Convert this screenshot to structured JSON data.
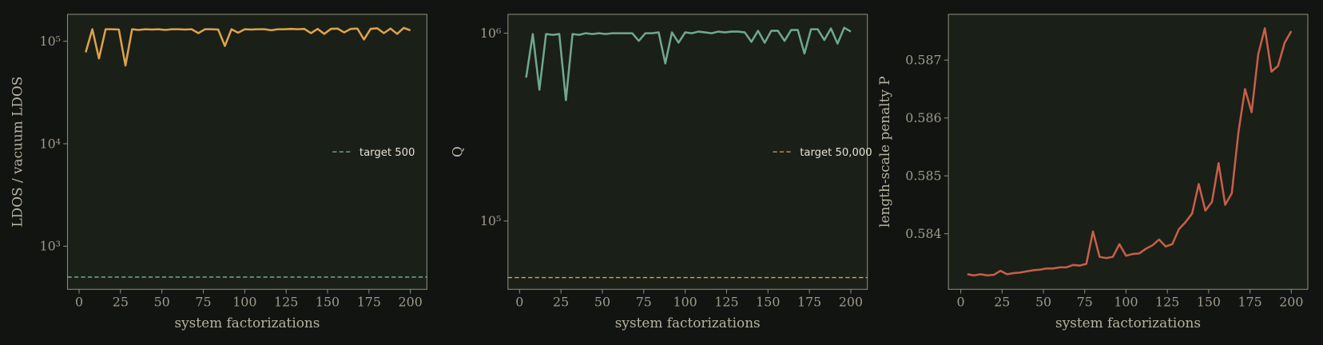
{
  "chart_data": [
    {
      "type": "line",
      "xlabel": "system factorizations",
      "ylabel": "LDOS / vacuum LDOS",
      "yscale": "log",
      "x": [
        4,
        8,
        12,
        16,
        20,
        24,
        28,
        32,
        36,
        40,
        44,
        48,
        52,
        56,
        60,
        64,
        68,
        72,
        76,
        80,
        84,
        88,
        92,
        96,
        100,
        104,
        108,
        112,
        116,
        120,
        124,
        128,
        132,
        136,
        140,
        144,
        148,
        152,
        156,
        160,
        164,
        168,
        172,
        176,
        180,
        184,
        188,
        192,
        196,
        200
      ],
      "values": [
        78000,
        131000,
        68000,
        131000,
        131000,
        130000,
        58000,
        131000,
        129000,
        131000,
        130000,
        131000,
        129000,
        131000,
        131000,
        130000,
        131000,
        120000,
        131000,
        131000,
        130000,
        90000,
        131000,
        121000,
        131000,
        130000,
        131000,
        131000,
        128000,
        131000,
        131000,
        132000,
        131000,
        132000,
        120000,
        132000,
        118000,
        132000,
        133000,
        122000,
        132000,
        133000,
        104000,
        132000,
        134000,
        120000,
        133000,
        118000,
        135000,
        128000
      ],
      "color": "#dda24a",
      "reference_line": {
        "value": 500,
        "label": "target 500",
        "color": "#7fb39a"
      },
      "legend": "center right",
      "xlim": [
        -7,
        210
      ],
      "ylim": [
        380,
        183000
      ],
      "xticks": [
        0,
        25,
        50,
        75,
        100,
        125,
        150,
        175,
        200
      ],
      "yticks": [
        {
          "value": 1000,
          "label": "10³"
        },
        {
          "value": 10000,
          "label": "10⁴"
        },
        {
          "value": 100000,
          "label": "10⁵"
        }
      ]
    },
    {
      "type": "line",
      "xlabel": "system factorizations",
      "ylabel": "Q",
      "yscale": "log",
      "x": [
        4,
        8,
        12,
        16,
        20,
        24,
        28,
        32,
        36,
        40,
        44,
        48,
        52,
        56,
        60,
        64,
        68,
        72,
        76,
        80,
        84,
        88,
        92,
        96,
        100,
        104,
        108,
        112,
        116,
        120,
        124,
        128,
        132,
        136,
        140,
        144,
        148,
        152,
        156,
        160,
        164,
        168,
        172,
        176,
        180,
        184,
        188,
        192,
        196,
        200
      ],
      "values": [
        580000,
        990000,
        500000,
        990000,
        980000,
        990000,
        440000,
        990000,
        980000,
        1000000,
        990000,
        1000000,
        990000,
        1000000,
        1000000,
        1000000,
        1000000,
        910000,
        1000000,
        1000000,
        1010000,
        690000,
        1010000,
        890000,
        1010000,
        1000000,
        1020000,
        1010000,
        1000000,
        1020000,
        1010000,
        1020000,
        1020000,
        1010000,
        900000,
        1030000,
        890000,
        1030000,
        1030000,
        910000,
        1040000,
        1040000,
        780000,
        1050000,
        1050000,
        920000,
        1060000,
        880000,
        1070000,
        1020000
      ],
      "color": "#6fa88a",
      "reference_line": {
        "value": 50000,
        "label": "target 50,000",
        "color": "#dda24a"
      },
      "legend": "center right",
      "xlim": [
        -7,
        210
      ],
      "ylim": [
        43300,
        1260000
      ],
      "xticks": [
        0,
        25,
        50,
        75,
        100,
        125,
        150,
        175,
        200
      ],
      "yticks": [
        {
          "value": 100000,
          "label": "10⁵"
        },
        {
          "value": 1000000,
          "label": "10⁶"
        }
      ]
    },
    {
      "type": "line",
      "xlabel": "system factorizations",
      "ylabel": "length-scale penalty P",
      "yscale": "linear",
      "x": [
        4,
        8,
        12,
        16,
        20,
        24,
        28,
        32,
        36,
        40,
        44,
        48,
        52,
        56,
        60,
        64,
        68,
        72,
        76,
        80,
        84,
        88,
        92,
        96,
        100,
        104,
        108,
        112,
        116,
        120,
        124,
        128,
        132,
        136,
        140,
        144,
        148,
        152,
        156,
        160,
        164,
        168,
        172,
        176,
        180,
        184,
        188,
        192,
        196,
        200
      ],
      "values": [
        0.5833,
        0.58328,
        0.5833,
        0.58328,
        0.58329,
        0.58336,
        0.5833,
        0.58332,
        0.58333,
        0.58335,
        0.58337,
        0.58338,
        0.5834,
        0.5834,
        0.58342,
        0.58342,
        0.58346,
        0.58345,
        0.58348,
        0.58404,
        0.5836,
        0.58358,
        0.5836,
        0.58382,
        0.58362,
        0.58365,
        0.58366,
        0.58374,
        0.5838,
        0.5839,
        0.58378,
        0.58382,
        0.58408,
        0.5842,
        0.58435,
        0.58486,
        0.5844,
        0.58455,
        0.58522,
        0.5845,
        0.5847,
        0.58575,
        0.5865,
        0.5861,
        0.5871,
        0.58755,
        0.5868,
        0.5869,
        0.5873,
        0.5875
      ],
      "color": "#c65f48",
      "xlim": [
        -7.5,
        210
      ],
      "ylim": [
        0.58304,
        0.58779
      ],
      "xticks": [
        0,
        25,
        50,
        75,
        100,
        125,
        150,
        175,
        200
      ],
      "yticks": [
        0.584,
        0.585,
        0.586,
        0.587
      ]
    }
  ]
}
